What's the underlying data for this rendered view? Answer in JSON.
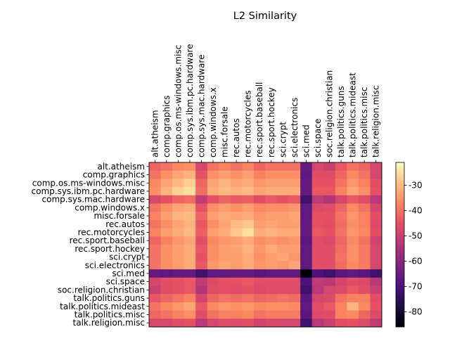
{
  "chart_data": {
    "type": "heatmap",
    "title": "L2 Similarity",
    "xlabel": "",
    "ylabel": "",
    "categories": [
      "alt.atheism",
      "comp.graphics",
      "comp.os.ms-windows.misc",
      "comp.sys.ibm.pc.hardware",
      "comp.sys.mac.hardware",
      "comp.windows.x",
      "misc.forsale",
      "rec.autos",
      "rec.motorcycles",
      "rec.sport.baseball",
      "rec.sport.hockey",
      "sci.crypt",
      "sci.electronics",
      "sci.med",
      "sci.space",
      "soc.religion.christian",
      "talk.politics.guns",
      "talk.politics.mideast",
      "talk.politics.misc",
      "talk.religion.misc"
    ],
    "values": [
      [
        -42,
        -40,
        -37,
        -36,
        -48,
        -40,
        -38,
        -40,
        -38,
        -42,
        -40,
        -40,
        -40,
        -66,
        -48,
        -50,
        -44,
        -40,
        -42,
        -48
      ],
      [
        -40,
        -36,
        -33,
        -31,
        -45,
        -36,
        -34,
        -36,
        -34,
        -38,
        -36,
        -36,
        -36,
        -67,
        -46,
        -46,
        -42,
        -37,
        -40,
        -48
      ],
      [
        -37,
        -33,
        -30,
        -27,
        -42,
        -33,
        -31,
        -33,
        -32,
        -35,
        -34,
        -34,
        -34,
        -66,
        -45,
        -45,
        -40,
        -35,
        -38,
        -46
      ],
      [
        -36,
        -31,
        -27,
        -25,
        -41,
        -32,
        -30,
        -31,
        -30,
        -33,
        -32,
        -32,
        -32,
        -66,
        -44,
        -44,
        -38,
        -33,
        -36,
        -45
      ],
      [
        -48,
        -45,
        -42,
        -41,
        -52,
        -45,
        -42,
        -44,
        -43,
        -46,
        -44,
        -45,
        -44,
        -72,
        -52,
        -54,
        -48,
        -44,
        -46,
        -53
      ],
      [
        -40,
        -36,
        -33,
        -32,
        -45,
        -36,
        -34,
        -36,
        -34,
        -37,
        -36,
        -36,
        -35,
        -67,
        -47,
        -46,
        -42,
        -37,
        -40,
        -48
      ],
      [
        -38,
        -34,
        -31,
        -30,
        -42,
        -34,
        -32,
        -33,
        -32,
        -35,
        -34,
        -34,
        -33,
        -67,
        -45,
        -45,
        -40,
        -35,
        -38,
        -46
      ],
      [
        -40,
        -36,
        -33,
        -31,
        -44,
        -36,
        -33,
        -30,
        -28,
        -34,
        -33,
        -34,
        -34,
        -66,
        -45,
        -46,
        -41,
        -36,
        -38,
        -47
      ],
      [
        -38,
        -34,
        -32,
        -30,
        -43,
        -34,
        -32,
        -28,
        -25,
        -32,
        -31,
        -32,
        -32,
        -66,
        -44,
        -45,
        -40,
        -35,
        -37,
        -46
      ],
      [
        -42,
        -38,
        -35,
        -33,
        -46,
        -37,
        -35,
        -34,
        -32,
        -36,
        -35,
        -36,
        -35,
        -68,
        -46,
        -47,
        -42,
        -37,
        -40,
        -49
      ],
      [
        -40,
        -36,
        -34,
        -32,
        -44,
        -36,
        -34,
        -33,
        -31,
        -35,
        -32,
        -34,
        -34,
        -67,
        -46,
        -46,
        -41,
        -36,
        -39,
        -48
      ],
      [
        -40,
        -36,
        -34,
        -32,
        -45,
        -36,
        -34,
        -34,
        -32,
        -36,
        -34,
        -33,
        -35,
        -67,
        -46,
        -46,
        -40,
        -36,
        -39,
        -48
      ],
      [
        -40,
        -36,
        -34,
        -32,
        -44,
        -35,
        -33,
        -34,
        -32,
        -35,
        -34,
        -35,
        -33,
        -67,
        -46,
        -46,
        -41,
        -37,
        -39,
        -48
      ],
      [
        -66,
        -67,
        -66,
        -66,
        -72,
        -67,
        -67,
        -66,
        -66,
        -68,
        -67,
        -67,
        -67,
        -86,
        -70,
        -72,
        -68,
        -67,
        -68,
        -72
      ],
      [
        -48,
        -46,
        -45,
        -44,
        -52,
        -47,
        -45,
        -45,
        -44,
        -46,
        -46,
        -46,
        -46,
        -70,
        -52,
        -53,
        -48,
        -46,
        -47,
        -53
      ],
      [
        -50,
        -46,
        -45,
        -44,
        -54,
        -46,
        -45,
        -46,
        -45,
        -47,
        -46,
        -46,
        -46,
        -72,
        -53,
        -48,
        -47,
        -44,
        -46,
        -50
      ],
      [
        -44,
        -42,
        -40,
        -38,
        -48,
        -42,
        -40,
        -41,
        -40,
        -42,
        -41,
        -40,
        -41,
        -68,
        -48,
        -47,
        -40,
        -38,
        -38,
        -46
      ],
      [
        -40,
        -37,
        -35,
        -33,
        -44,
        -37,
        -35,
        -36,
        -35,
        -37,
        -36,
        -36,
        -37,
        -67,
        -46,
        -44,
        -38,
        -31,
        -37,
        -45
      ],
      [
        -42,
        -40,
        -38,
        -36,
        -46,
        -40,
        -38,
        -38,
        -37,
        -40,
        -39,
        -39,
        -39,
        -68,
        -47,
        -46,
        -38,
        -37,
        -42,
        -47
      ],
      [
        -48,
        -48,
        -46,
        -45,
        -53,
        -48,
        -46,
        -47,
        -46,
        -49,
        -48,
        -48,
        -48,
        -72,
        -53,
        -50,
        -46,
        -45,
        -47,
        -52
      ]
    ],
    "colorbar": {
      "ticks": [
        "-30",
        "-40",
        "-50",
        "-60",
        "-70",
        "-80"
      ],
      "tick_values": [
        -30,
        -40,
        -50,
        -60,
        -70,
        -80
      ],
      "range": [
        -86,
        -21
      ],
      "colormap": "magma"
    },
    "grid": false,
    "legend": "colorbar-right"
  }
}
